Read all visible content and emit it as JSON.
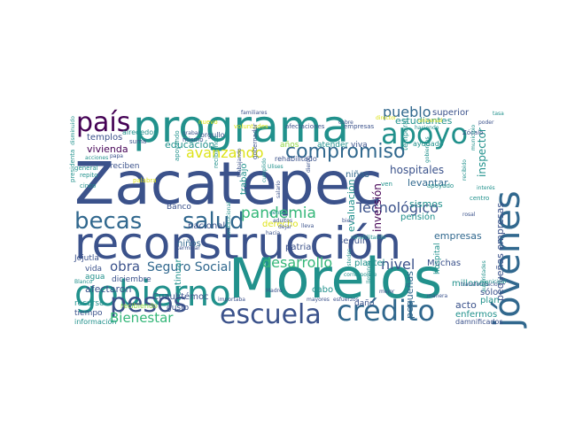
{
  "palette": {
    "dark_purple": "#440154",
    "indigo": "#3b528b",
    "blue": "#31688e",
    "teal": "#21918c",
    "green": "#35b779",
    "yellow_green": "#8fd744",
    "yellow": "#dde318",
    "background": "#ffffff"
  },
  "words": [
    {
      "text": "Zacatepec",
      "color": "indigo"
    },
    {
      "text": "reconstrucción",
      "color": "indigo"
    },
    {
      "text": "Morelos",
      "color": "teal"
    },
    {
      "text": "programa",
      "color": "teal"
    },
    {
      "text": "jóvenes",
      "color": "blue"
    },
    {
      "text": "gobierno",
      "color": "teal"
    },
    {
      "text": "crédito",
      "color": "blue"
    },
    {
      "text": "escuela",
      "color": "indigo"
    },
    {
      "text": "apoyo",
      "color": "teal"
    },
    {
      "text": "becas",
      "color": "blue"
    },
    {
      "text": "salud",
      "color": "blue"
    },
    {
      "text": "pesos",
      "color": "indigo"
    },
    {
      "text": "país",
      "color": "dark_purple"
    },
    {
      "text": "compromiso",
      "color": "blue"
    },
    {
      "text": "pandemia",
      "color": "green"
    },
    {
      "text": "Bienestar",
      "color": "green"
    },
    {
      "text": "avanzando",
      "color": "yellow"
    },
    {
      "text": "desarrollo",
      "color": "green"
    },
    {
      "text": "Tecnológico",
      "color": "indigo"
    },
    {
      "text": "pueblo",
      "color": "blue"
    },
    {
      "text": "nivel",
      "color": "indigo"
    },
    {
      "text": "obra",
      "color": "indigo"
    },
    {
      "text": "Seguro Social",
      "color": "blue"
    },
    {
      "text": "hospitales",
      "color": "indigo"
    },
    {
      "text": "estudiantes",
      "color": "teal"
    },
    {
      "text": "superior",
      "color": "indigo"
    },
    {
      "text": "inspector",
      "color": "teal"
    },
    {
      "text": "pequeñas empresas",
      "color": "indigo"
    },
    {
      "text": "pequeñas",
      "color": "blue"
    },
    {
      "text": "empresas",
      "color": "blue"
    },
    {
      "text": "inversión",
      "color": "dark_purple"
    },
    {
      "text": "sismos",
      "color": "teal"
    },
    {
      "text": "levantar",
      "color": "blue"
    },
    {
      "text": "evaluación",
      "color": "teal"
    },
    {
      "text": "educación",
      "color": "teal"
    },
    {
      "text": "vivienda",
      "color": "dark_purple"
    },
    {
      "text": "templos",
      "color": "indigo"
    },
    {
      "text": "afectaron",
      "color": "indigo"
    },
    {
      "text": "nacional",
      "color": "indigo"
    },
    {
      "text": "niños",
      "color": "blue"
    },
    {
      "text": "trabajo",
      "color": "teal"
    },
    {
      "text": "continuar",
      "color": "teal"
    },
    {
      "text": "Cuauhtémoc",
      "color": "indigo"
    },
    {
      "text": "derecho",
      "color": "yellow"
    },
    {
      "text": "patria",
      "color": "indigo"
    },
    {
      "text": "seguir",
      "color": "indigo"
    },
    {
      "text": "pensión",
      "color": "teal"
    },
    {
      "text": "plantel",
      "color": "teal"
    },
    {
      "text": "Muchas",
      "color": "indigo"
    },
    {
      "text": "millones",
      "color": "teal"
    },
    {
      "text": "acto",
      "color": "indigo"
    },
    {
      "text": "plan",
      "color": "teal"
    },
    {
      "text": "enfermos",
      "color": "teal"
    },
    {
      "text": "sólo",
      "color": "indigo"
    },
    {
      "text": "damnificados",
      "color": "indigo"
    },
    {
      "text": "hospital",
      "color": "teal"
    },
    {
      "text": "cabo",
      "color": "teal"
    },
    {
      "text": "niñas",
      "color": "blue"
    },
    {
      "text": "daño",
      "color": "indigo"
    },
    {
      "text": "Jojutla",
      "color": "indigo"
    },
    {
      "text": "vida",
      "color": "indigo"
    },
    {
      "text": "agua",
      "color": "teal"
    },
    {
      "text": "diciembre",
      "color": "indigo"
    },
    {
      "text": "tiempo",
      "color": "indigo"
    },
    {
      "text": "recurso",
      "color": "teal"
    },
    {
      "text": "recibiendo",
      "color": "yellow_green"
    },
    {
      "text": "información",
      "color": "teal"
    },
    {
      "text": "Banco",
      "color": "indigo"
    },
    {
      "text": "gusto",
      "color": "indigo"
    },
    {
      "text": "reciben",
      "color": "indigo"
    },
    {
      "text": "años",
      "color": "yellow_green"
    },
    {
      "text": "atender",
      "color": "teal"
    },
    {
      "text": "viva",
      "color": "indigo"
    },
    {
      "text": "ayudado",
      "color": "teal"
    },
    {
      "text": "rehabilitado",
      "color": "indigo"
    },
    {
      "text": "temporal",
      "color": "teal"
    },
    {
      "text": "alrededor",
      "color": "teal"
    },
    {
      "text": "suma",
      "color": "indigo"
    },
    {
      "text": "orgullo",
      "color": "indigo"
    },
    {
      "text": "mismo",
      "color": "indigo"
    },
    {
      "text": "voluntades",
      "color": "yellow"
    },
    {
      "text": "afectaciones",
      "color": "indigo"
    },
    {
      "text": "empresas",
      "color": "indigo"
    },
    {
      "text": "Zócalo",
      "color": "indigo"
    },
    {
      "text": "nuevo",
      "color": "yellow"
    },
    {
      "text": "apoyando",
      "color": "teal"
    },
    {
      "text": "gobernador",
      "color": "indigo"
    },
    {
      "text": "general",
      "color": "teal"
    },
    {
      "text": "repito",
      "color": "teal"
    },
    {
      "text": "cinco",
      "color": "teal"
    },
    {
      "text": "palabra",
      "color": "yellow"
    },
    {
      "text": "presidenta",
      "color": "teal"
    },
    {
      "text": "recibiendo",
      "color": "teal"
    },
    {
      "text": "apoyado",
      "color": "teal"
    },
    {
      "text": "ven",
      "color": "teal"
    },
    {
      "text": "centro",
      "color": "teal"
    },
    {
      "text": "acciones",
      "color": "teal"
    },
    {
      "text": "papa",
      "color": "indigo"
    },
    {
      "text": "poder",
      "color": "indigo"
    },
    {
      "text": "municipio",
      "color": "teal"
    },
    {
      "text": "recibido",
      "color": "teal"
    },
    {
      "text": "haciendo",
      "color": "teal"
    },
    {
      "text": "manera",
      "color": "indigo"
    },
    {
      "text": "transformación",
      "color": "indigo"
    },
    {
      "text": "mejor",
      "color": "indigo"
    },
    {
      "text": "esfuerzos",
      "color": "indigo"
    },
    {
      "text": "mayores",
      "color": "indigo"
    },
    {
      "text": "importaba",
      "color": "indigo"
    },
    {
      "text": "cobre",
      "color": "indigo"
    },
    {
      "text": "director",
      "color": "yellow"
    },
    {
      "text": "universal",
      "color": "yellow"
    },
    {
      "text": "grabar",
      "color": "indigo"
    },
    {
      "text": "disminuido",
      "color": "teal"
    },
    {
      "text": "constitucional",
      "color": "teal"
    },
    {
      "text": "cumplido",
      "color": "teal"
    },
    {
      "text": "gente",
      "color": "teal"
    },
    {
      "text": "bien",
      "color": "indigo"
    },
    {
      "text": "dieron",
      "color": "indigo"
    },
    {
      "text": "adultos",
      "color": "indigo"
    },
    {
      "text": "terminar",
      "color": "indigo"
    },
    {
      "text": "Madre",
      "color": "indigo"
    },
    {
      "text": "Blanco",
      "color": "teal"
    },
    {
      "text": "lleva",
      "color": "indigo"
    },
    {
      "text": "rehabilitando",
      "color": "teal"
    },
    {
      "text": "corresponde",
      "color": "teal"
    },
    {
      "text": "dejar",
      "color": "indigo"
    },
    {
      "text": "familiares",
      "color": "indigo"
    },
    {
      "text": "trabajando",
      "color": "indigo"
    },
    {
      "text": "hacia",
      "color": "indigo"
    },
    {
      "text": "tasa",
      "color": "teal"
    },
    {
      "text": "llevando",
      "color": "teal"
    },
    {
      "text": "salario",
      "color": "indigo"
    },
    {
      "text": "Ustedes",
      "color": "teal"
    },
    {
      "text": "autoridades",
      "color": "teal"
    },
    {
      "text": "interés",
      "color": "teal"
    },
    {
      "text": "rosal",
      "color": "indigo"
    },
    {
      "text": "gobiernos",
      "color": "teal"
    },
    {
      "text": "municipal",
      "color": "teal"
    },
    {
      "text": "Ulises",
      "color": "teal"
    }
  ]
}
